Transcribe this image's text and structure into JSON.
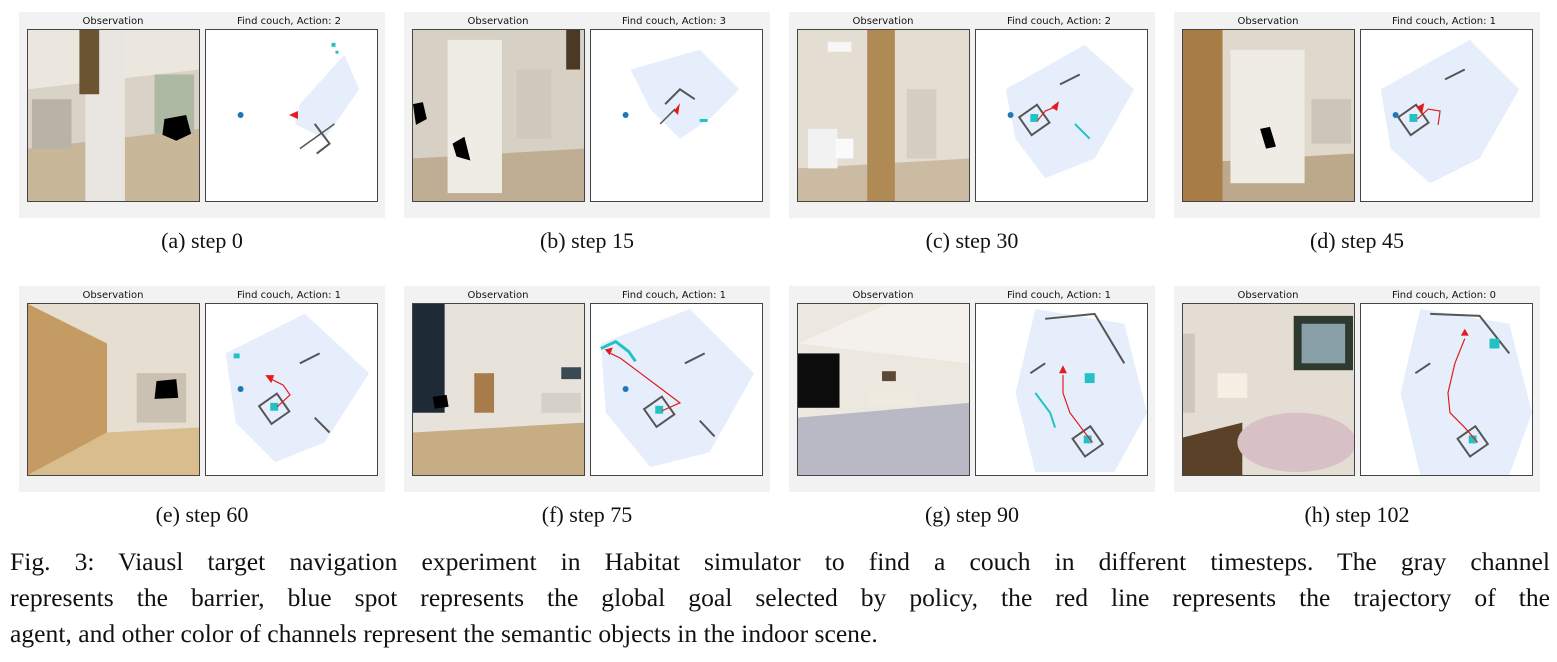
{
  "panels": [
    {
      "obs_title": "Observation",
      "map_title": "Find couch, Action: 2",
      "caption": "(a) step 0"
    },
    {
      "obs_title": "Observation",
      "map_title": "Find couch, Action: 3",
      "caption": "(b) step 15"
    },
    {
      "obs_title": "Observation",
      "map_title": "Find couch, Action: 2",
      "caption": "(c) step 30"
    },
    {
      "obs_title": "Observation",
      "map_title": "Find couch, Action: 1",
      "caption": "(d) step 45"
    },
    {
      "obs_title": "Observation",
      "map_title": "Find couch, Action: 1",
      "caption": "(e) step 60"
    },
    {
      "obs_title": "Observation",
      "map_title": "Find couch, Action: 1",
      "caption": "(f) step 75"
    },
    {
      "obs_title": "Observation",
      "map_title": "Find couch, Action: 1",
      "caption": "(g) step 90"
    },
    {
      "obs_title": "Observation",
      "map_title": "Find couch, Action: 0",
      "caption": "(h) step 102"
    }
  ],
  "figure_caption": {
    "line1": "Fig. 3: Viausl target navigation experiment in Habitat simulator to find a couch in different timesteps. The gray channel",
    "line2": "represents the barrier, blue spot represents the global goal selected by policy, the red line represents the trajectory of the",
    "line3": "agent, and other color of channels represent the semantic objects in the indoor scene."
  },
  "colors": {
    "barrier": "#555555",
    "explored": "#e6eefb",
    "goal": "#1f77b4",
    "trajectory": "#e41a1c",
    "semantic": "#22c1c3"
  }
}
